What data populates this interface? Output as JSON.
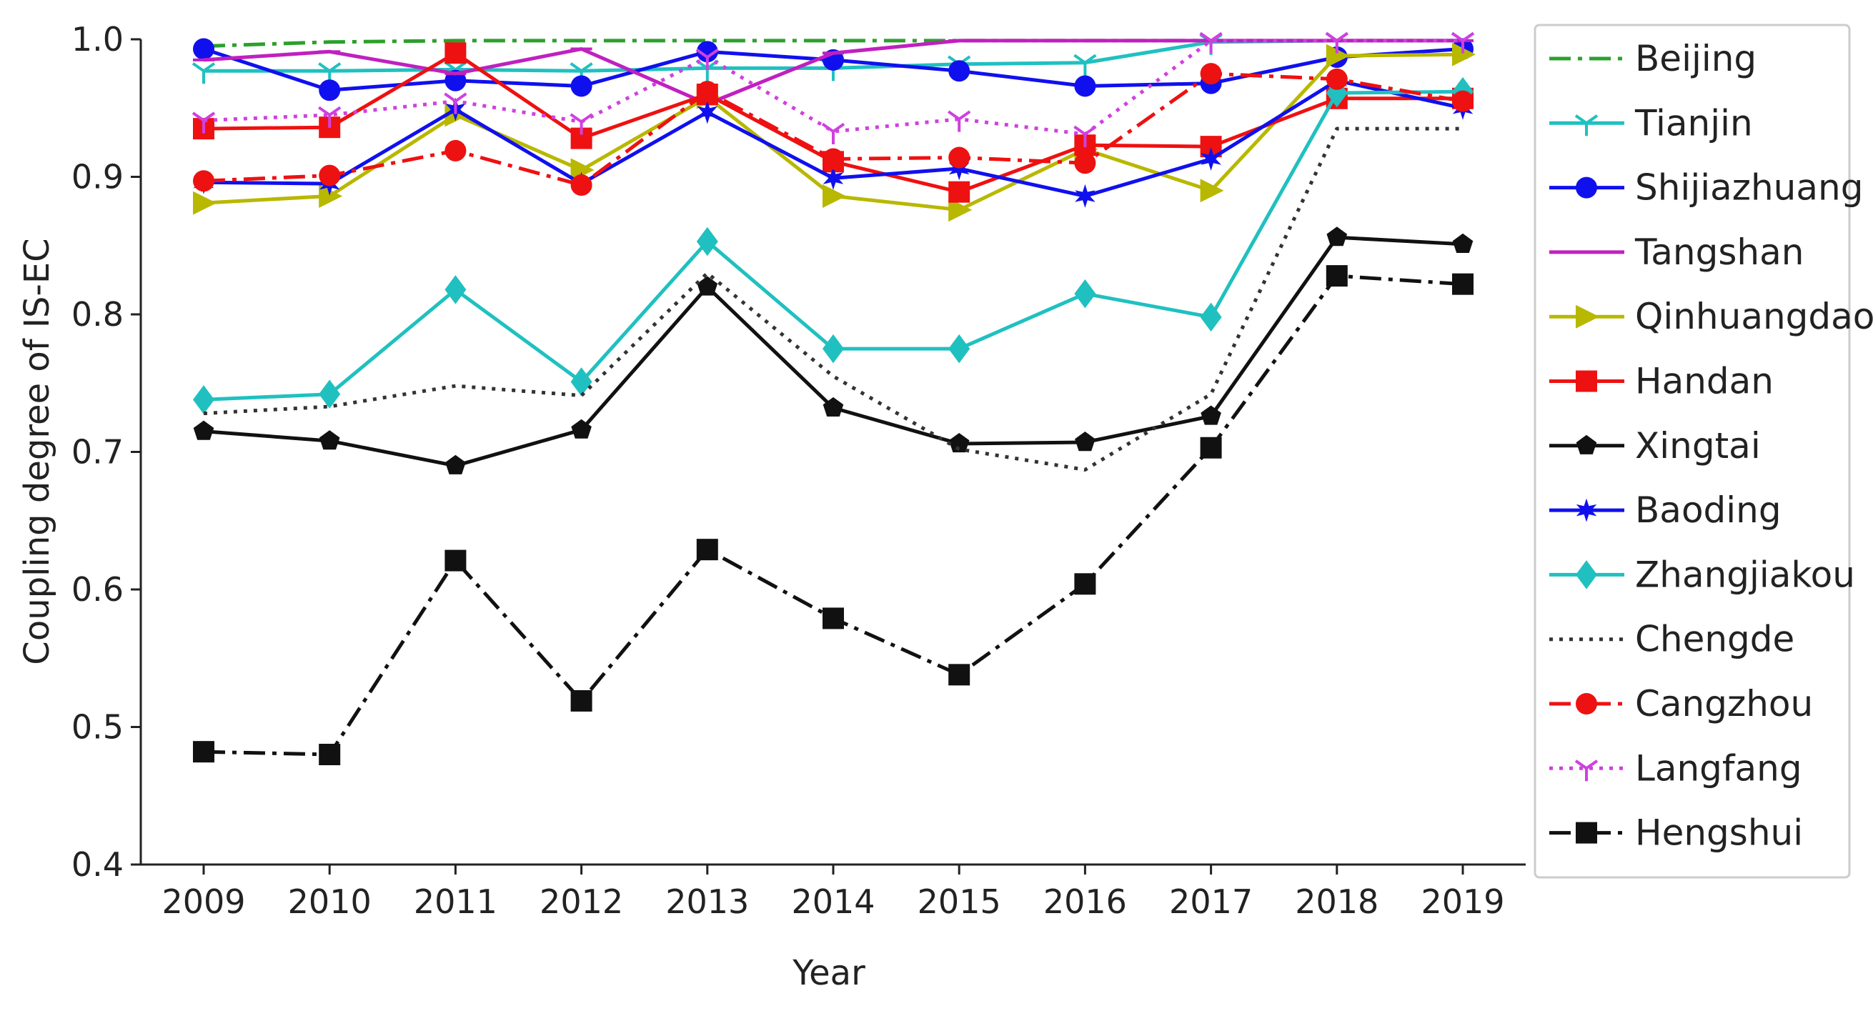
{
  "chart_data": {
    "type": "line",
    "title": "",
    "xlabel": "Year",
    "ylabel": "Coupling degree of IS-EC",
    "x": [
      2009,
      2010,
      2011,
      2012,
      2013,
      2014,
      2015,
      2016,
      2017,
      2018,
      2019
    ],
    "xtick_labels": [
      "2009",
      "2010",
      "2011",
      "2012",
      "2013",
      "2014",
      "2015",
      "2016",
      "2017",
      "2018",
      "2019"
    ],
    "ylim": [
      0.4,
      1.0
    ],
    "yticks": [
      0.4,
      0.5,
      0.6,
      0.7,
      0.8,
      0.9,
      1.0
    ],
    "ytick_labels": [
      "0.4",
      "0.5",
      "0.6",
      "0.7",
      "0.8",
      "0.9",
      "1.0"
    ],
    "grid": false,
    "legend_position": "right, outside plot",
    "series": [
      {
        "name": "Beijing",
        "color": "#2ca02c",
        "dash": "dashdot",
        "marker": "none",
        "values": [
          0.995,
          0.998,
          0.999,
          0.999,
          0.999,
          0.999,
          0.999,
          0.999,
          0.999,
          0.999,
          0.999
        ]
      },
      {
        "name": "Tianjin",
        "color": "#20c0c0",
        "dash": "solid",
        "marker": "tri-down",
        "values": [
          0.977,
          0.977,
          0.978,
          0.977,
          0.979,
          0.979,
          0.982,
          0.983,
          0.998,
          0.999,
          0.999
        ]
      },
      {
        "name": "Shijiazhuang",
        "color": "#1010ee",
        "dash": "solid",
        "marker": "circle",
        "values": [
          0.993,
          0.963,
          0.97,
          0.966,
          0.991,
          0.985,
          0.977,
          0.966,
          0.968,
          0.987,
          0.993
        ]
      },
      {
        "name": "Tangshan",
        "color": "#c020c0",
        "dash": "solid",
        "marker": "hline",
        "values": [
          0.985,
          0.991,
          0.975,
          0.993,
          0.953,
          0.99,
          0.999,
          0.999,
          0.999,
          0.999,
          0.999
        ]
      },
      {
        "name": "Qinhuangdao",
        "color": "#b8b800",
        "dash": "solid",
        "marker": "triangle-right",
        "values": [
          0.881,
          0.886,
          0.945,
          0.905,
          0.958,
          0.886,
          0.876,
          0.92,
          0.89,
          0.988,
          0.989
        ]
      },
      {
        "name": "Handan",
        "color": "#ee1111",
        "dash": "solid",
        "marker": "square",
        "values": [
          0.935,
          0.936,
          0.99,
          0.928,
          0.96,
          0.911,
          0.889,
          0.923,
          0.922,
          0.957,
          0.957
        ]
      },
      {
        "name": "Xingtai",
        "color": "#111111",
        "dash": "solid",
        "marker": "pentagon",
        "values": [
          0.715,
          0.708,
          0.69,
          0.716,
          0.82,
          0.732,
          0.706,
          0.707,
          0.726,
          0.856,
          0.851
        ]
      },
      {
        "name": "Baoding",
        "color": "#1010ee",
        "dash": "solid",
        "marker": "star",
        "values": [
          0.896,
          0.895,
          0.949,
          0.895,
          0.947,
          0.899,
          0.906,
          0.886,
          0.913,
          0.97,
          0.95
        ]
      },
      {
        "name": "Zhangjiakou",
        "color": "#20c0c0",
        "dash": "solid",
        "marker": "diamond",
        "values": [
          0.738,
          0.742,
          0.818,
          0.751,
          0.853,
          0.775,
          0.775,
          0.815,
          0.798,
          0.961,
          0.962
        ]
      },
      {
        "name": "Chengde",
        "color": "#333333",
        "dash": "dotted",
        "marker": "none",
        "values": [
          0.728,
          0.733,
          0.748,
          0.741,
          0.83,
          0.755,
          0.702,
          0.687,
          0.742,
          0.935,
          0.935
        ]
      },
      {
        "name": "Cangzhou",
        "color": "#ee1111",
        "dash": "dashdot",
        "marker": "circle",
        "values": [
          0.897,
          0.901,
          0.919,
          0.894,
          0.962,
          0.913,
          0.914,
          0.91,
          0.975,
          0.971,
          0.955
        ]
      },
      {
        "name": "Langfang",
        "color": "#d040e0",
        "dash": "dotted",
        "marker": "tri-down",
        "values": [
          0.941,
          0.945,
          0.955,
          0.94,
          0.987,
          0.933,
          0.942,
          0.931,
          0.999,
          0.999,
          0.999
        ]
      },
      {
        "name": "Hengshui",
        "color": "#111111",
        "dash": "dashdot",
        "marker": "square",
        "values": [
          0.482,
          0.48,
          0.621,
          0.519,
          0.629,
          0.579,
          0.538,
          0.604,
          0.703,
          0.828,
          0.822
        ]
      }
    ]
  }
}
